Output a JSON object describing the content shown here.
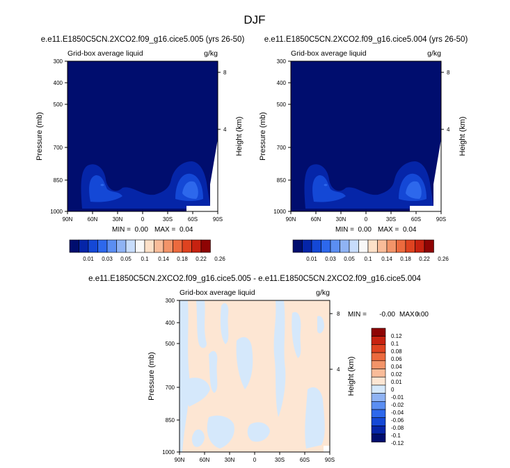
{
  "chart_data": {
    "title": "DJF",
    "panels": [
      {
        "type": "heatmap",
        "subtitle": "e.e11.E1850C5CN.2XCO2.f09_g16.cice5.005 (yrs 26-50)",
        "left_label": "Grid-box average liquid",
        "right_label": "g/kg",
        "ylabel": "Pressure (mb)",
        "ylabel_right": "Height (km)",
        "x_ticks": [
          "90N",
          "60N",
          "30N",
          "0",
          "30S",
          "60S",
          "90S"
        ],
        "y_ticks": [
          "300",
          "400",
          "500",
          "700",
          "850",
          "1000"
        ],
        "height_ticks": [
          "8",
          "4"
        ],
        "stats": {
          "min_label": "MIN =",
          "min": "0.00",
          "max_label": "MAX =",
          "max": "0.04"
        },
        "colorbar_labels": [
          "0.01",
          "0.03",
          "0.05",
          "0.1",
          "0.14",
          "0.18",
          "0.22",
          "0.26"
        ]
      },
      {
        "type": "heatmap",
        "subtitle": "e.e11.E1850C5CN.2XCO2.f09_g16.cice5.004 (yrs 26-50)",
        "left_label": "Grid-box average liquid",
        "right_label": "g/kg",
        "ylabel": "Pressure (mb)",
        "ylabel_right": "Height (km)",
        "x_ticks": [
          "90N",
          "60N",
          "30N",
          "0",
          "30S",
          "60S",
          "90S"
        ],
        "y_ticks": [
          "300",
          "400",
          "500",
          "700",
          "850",
          "1000"
        ],
        "height_ticks": [
          "8",
          "4"
        ],
        "stats": {
          "min_label": "MIN =",
          "min": "0.00",
          "max_label": "MAX =",
          "max": "0.04"
        },
        "colorbar_labels": [
          "0.01",
          "0.03",
          "0.05",
          "0.1",
          "0.14",
          "0.18",
          "0.22",
          "0.26"
        ]
      },
      {
        "type": "heatmap",
        "subtitle": "e.e11.E1850C5CN.2XCO2.f09_g16.cice5.005 - e.e11.E1850C5CN.2XCO2.f09_g16.cice5.004",
        "left_label": "Grid-box average liquid",
        "right_label": "g/kg",
        "ylabel": "Pressure (mb)",
        "ylabel_right": "Height (km)",
        "x_ticks": [
          "90N",
          "60N",
          "30N",
          "0",
          "30S",
          "60S",
          "90S"
        ],
        "y_ticks": [
          "300",
          "400",
          "500",
          "700",
          "850",
          "1000"
        ],
        "height_ticks": [
          "8",
          "4"
        ],
        "stats": {
          "min_label": "MIN =",
          "min": "-0.00",
          "max_label": "MAX =",
          "max": "0.00"
        },
        "colorbar_labels": [
          "0.12",
          "0.1",
          "0.08",
          "0.06",
          "0.04",
          "0.02",
          "0.01",
          "0",
          "-0.01",
          "-0.02",
          "-0.04",
          "-0.06",
          "-0.08",
          "-0.1",
          "-0.12"
        ]
      }
    ],
    "colorbar_colors": {
      "sequential": [
        "#000d6e",
        "#0525a8",
        "#1448d6",
        "#2d68ec",
        "#5b8ef2",
        "#8fb3f4",
        "#c7dcfb",
        "#f8f8f8",
        "#fde0c8",
        "#f9bc99",
        "#f39469",
        "#ec6a3e",
        "#df4320",
        "#c72210",
        "#8e0404"
      ],
      "diverging": [
        "#000d6e",
        "#0525a8",
        "#1448d6",
        "#2d68ec",
        "#5b8ef2",
        "#8fb3f4",
        "#d5e8fb",
        "#fde6d3",
        "#f9bc99",
        "#f39469",
        "#ec6a3e",
        "#df4320",
        "#c72210",
        "#8e0404"
      ]
    }
  }
}
